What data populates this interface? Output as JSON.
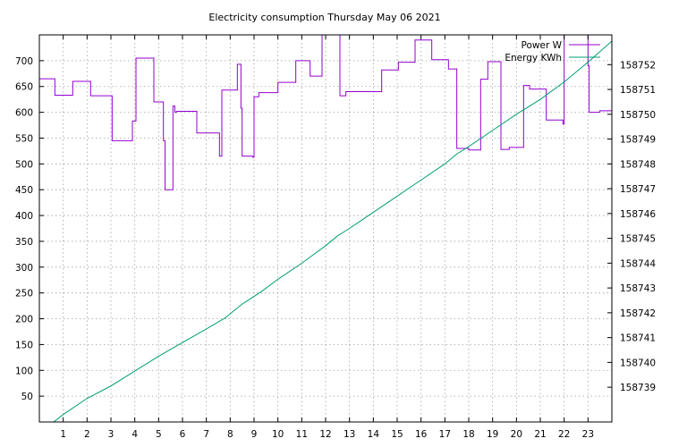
{
  "chart_data": {
    "type": "line",
    "title": "Electricity consumption Thursday May 06 2021",
    "xlim": [
      0,
      24
    ],
    "x_ticks": [
      1,
      2,
      3,
      4,
      5,
      6,
      7,
      8,
      9,
      10,
      11,
      12,
      13,
      14,
      15,
      16,
      17,
      18,
      19,
      20,
      21,
      22,
      23
    ],
    "y_left": {
      "lim": [
        0,
        750
      ],
      "ticks": [
        50,
        100,
        150,
        200,
        250,
        300,
        350,
        400,
        450,
        500,
        550,
        600,
        650,
        700
      ]
    },
    "y_right": {
      "lim": [
        158737.6,
        158753.2
      ],
      "ticks": [
        158739,
        158740,
        158741,
        158742,
        158743,
        158744,
        158745,
        158746,
        158747,
        158748,
        158749,
        158750,
        158751,
        158752
      ]
    },
    "grid": true,
    "legend_position": "top-right",
    "series": [
      {
        "name": "Power W",
        "axis": "left",
        "color": "#9400d3",
        "step": true,
        "x": [
          0,
          0.65,
          1.4,
          2.15,
          3.05,
          3.9,
          4.05,
          4.8,
          5.2,
          5.27,
          5.6,
          5.68,
          5.75,
          6.6,
          7.55,
          7.65,
          8.3,
          8.45,
          8.5,
          8.95,
          9.0,
          9.2,
          10.0,
          10.75,
          11.35,
          11.85,
          12.05,
          12.6,
          12.85,
          14.35,
          15.05,
          15.75,
          16.45,
          17.15,
          17.5,
          18.0,
          18.5,
          18.8,
          19.35,
          19.7,
          20.3,
          20.55,
          21.25,
          21.95,
          22.0,
          22.1,
          23.0,
          23.05,
          23.5
        ],
        "values": [
          665,
          633,
          660,
          632,
          545,
          583,
          705,
          620,
          545,
          450,
          612,
          600,
          602,
          560,
          515,
          643,
          693,
          608,
          515,
          513,
          630,
          638,
          658,
          700,
          670,
          750,
          750,
          632,
          640,
          682,
          697,
          740,
          702,
          684,
          530,
          527,
          664,
          698,
          528,
          532,
          652,
          645,
          585,
          577,
          750,
          750,
          690,
          600,
          603
        ]
      },
      {
        "name": "Energy KWh",
        "axis": "right",
        "color": "#009e73",
        "step": false,
        "x": [
          0.6,
          1.0,
          2.0,
          3.0,
          4.0,
          5.0,
          6.0,
          7.0,
          7.8,
          8.5,
          9.3,
          10.0,
          11.0,
          11.5,
          12.0,
          12.5,
          13.0,
          14.0,
          15.0,
          16.0,
          17.0,
          17.5,
          18.0,
          19.0,
          20.0,
          21.0,
          22.0,
          23.0,
          24.0
        ],
        "values": [
          158737.6,
          158737.9,
          158738.55,
          158739.05,
          158739.65,
          158740.25,
          158740.8,
          158741.35,
          158741.8,
          158742.35,
          158742.85,
          158743.35,
          158744.0,
          158744.35,
          158744.7,
          158745.1,
          158745.4,
          158746.05,
          158746.7,
          158747.35,
          158748.0,
          158748.4,
          158748.7,
          158749.35,
          158750.0,
          158750.6,
          158751.3,
          158752.1,
          158752.95
        ]
      }
    ]
  }
}
